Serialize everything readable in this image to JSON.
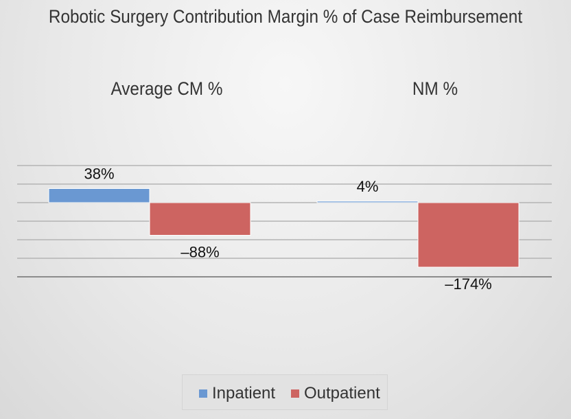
{
  "chart_data": {
    "type": "bar",
    "title": "Robotic Surgery Contribution Margin % of Case Reimbursement",
    "categories": [
      "Average CM %",
      "NM %"
    ],
    "series": [
      {
        "name": "Inpatient",
        "values": [
          38,
          4
        ],
        "color": "#6a98d2",
        "labels": [
          "38%",
          "4%"
        ]
      },
      {
        "name": "Outpatient",
        "values": [
          -88,
          -174
        ],
        "color": "#cd6461",
        "labels": [
          "–88%",
          "–174%"
        ]
      }
    ],
    "ylim": [
      -200,
      100
    ],
    "grid": true,
    "legend_position": "bottom"
  }
}
